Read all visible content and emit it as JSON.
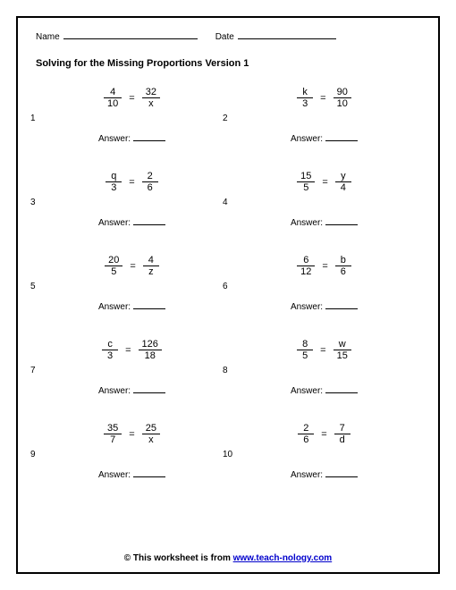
{
  "header": {
    "name_label": "Name",
    "date_label": "Date",
    "name_rule_width": 150,
    "date_rule_width": 110
  },
  "title": "Solving for the Missing Proportions Version 1",
  "answer_label": "Answer:",
  "problems": [
    {
      "n": "1",
      "a": "4",
      "b": "10",
      "c": "32",
      "d": "x"
    },
    {
      "n": "2",
      "a": "k",
      "b": "3",
      "c": "90",
      "d": "10"
    },
    {
      "n": "3",
      "a": "q",
      "b": "3",
      "c": "2",
      "d": "6"
    },
    {
      "n": "4",
      "a": "15",
      "b": "5",
      "c": "y",
      "d": "4"
    },
    {
      "n": "5",
      "a": "20",
      "b": "5",
      "c": "4",
      "d": "z"
    },
    {
      "n": "6",
      "a": "6",
      "b": "12",
      "c": "b",
      "d": "6"
    },
    {
      "n": "7",
      "a": "c",
      "b": "3",
      "c": "126",
      "d": "18"
    },
    {
      "n": "8",
      "a": "8",
      "b": "5",
      "c": "w",
      "d": "15"
    },
    {
      "n": "9",
      "a": "35",
      "b": "7",
      "c": "25",
      "d": "x"
    },
    {
      "n": "10",
      "a": "2",
      "b": "6",
      "c": "7",
      "d": "d"
    }
  ],
  "footer": {
    "prefix": "© This worksheet is from ",
    "link_text": "www.teach-nology.com"
  }
}
